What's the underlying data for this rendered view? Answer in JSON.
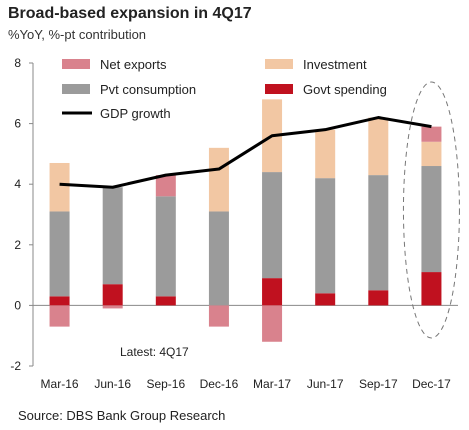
{
  "title": "Broad-based expansion in 4Q17",
  "subtitle": "%YoY, %-pt contribution",
  "source": "Source: DBS Bank Group Research",
  "chart_data": {
    "type": "bar",
    "stacked": true,
    "categories": [
      "Mar-16",
      "Jun-16",
      "Sep-16",
      "Dec-16",
      "Mar-17",
      "Jun-17",
      "Sep-17",
      "Dec-17"
    ],
    "ylim": [
      -2,
      8
    ],
    "yticks": [
      -2,
      0,
      2,
      4,
      6,
      8
    ],
    "series": [
      {
        "name": "Govt spending",
        "color": "#c0111f",
        "values": [
          0.3,
          0.7,
          0.3,
          0.0,
          0.9,
          0.4,
          0.5,
          1.1
        ]
      },
      {
        "name": "Pvt consumption",
        "color": "#9b9b9b",
        "values": [
          2.8,
          3.2,
          3.3,
          3.1,
          3.5,
          3.8,
          3.8,
          3.5
        ]
      },
      {
        "name": "Investment",
        "color": "#f2c7a3",
        "values": [
          1.6,
          0.0,
          0.0,
          2.1,
          2.4,
          1.6,
          1.9,
          0.8
        ]
      },
      {
        "name": "Net exports",
        "color": "#d9828d",
        "values": [
          -0.7,
          -0.1,
          0.7,
          -0.7,
          -1.2,
          0.0,
          0.0,
          0.5
        ]
      }
    ],
    "line": {
      "name": "GDP growth",
      "color": "#000000",
      "values": [
        4.0,
        3.9,
        4.3,
        4.5,
        5.6,
        5.8,
        6.2,
        5.9
      ]
    },
    "legend": [
      {
        "name": "Net exports",
        "color": "#d9828d",
        "kind": "box"
      },
      {
        "name": "Investment",
        "color": "#f2c7a3",
        "kind": "box"
      },
      {
        "name": "Pvt consumption",
        "color": "#9b9b9b",
        "kind": "box"
      },
      {
        "name": "Govt spending",
        "color": "#c0111f",
        "kind": "box"
      },
      {
        "name": "GDP growth",
        "color": "#000000",
        "kind": "line"
      }
    ],
    "legend_position": "top-left",
    "annotation": "Latest: 4Q17",
    "highlight_category": "Dec-17",
    "grid": false
  }
}
